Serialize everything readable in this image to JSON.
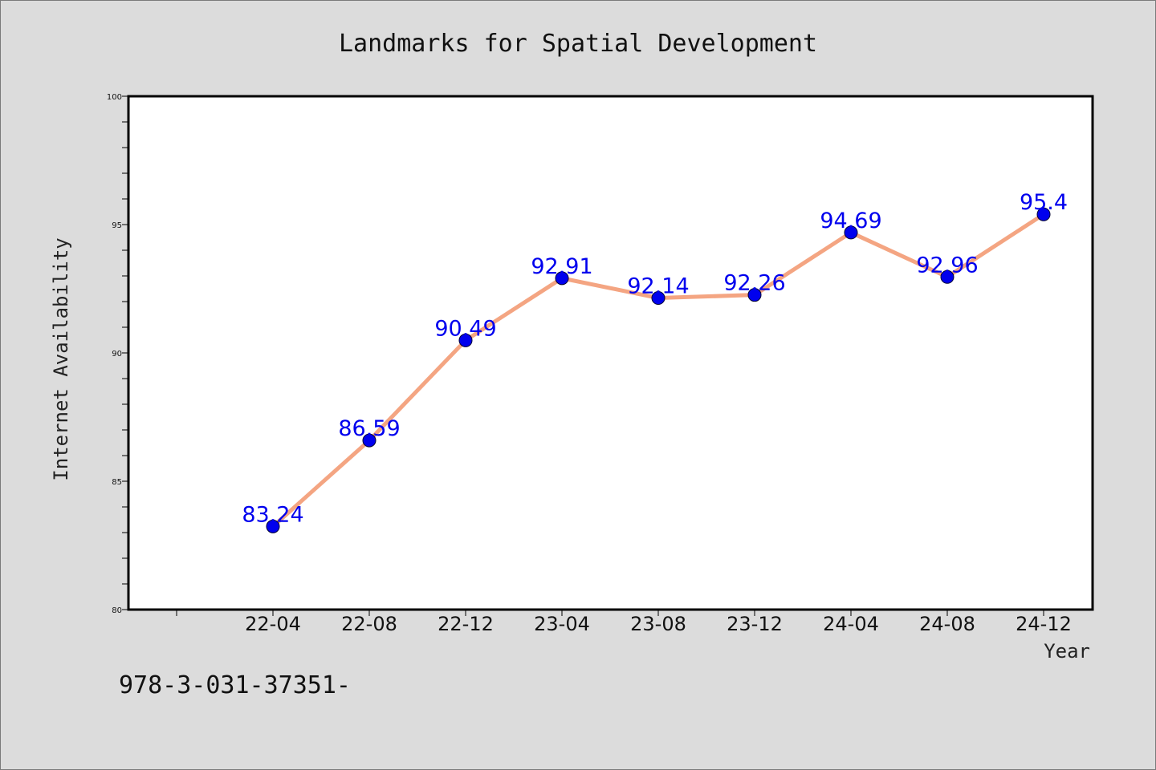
{
  "chart_data": {
    "type": "line",
    "title": "Landmarks for Spatial Development",
    "xlabel": "Year",
    "ylabel": "Internet Availability",
    "categories": [
      "22-04",
      "22-08",
      "22-12",
      "23-04",
      "23-08",
      "23-12",
      "24-04",
      "24-08",
      "24-12"
    ],
    "series": [
      {
        "values": [
          83.24,
          86.59,
          90.49,
          92.91,
          92.14,
          92.26,
          94.69,
          92.96,
          95.4
        ],
        "labels": [
          "83.24",
          "86.59",
          "90.49",
          "92.91",
          "92.14",
          "92.26",
          "94.69",
          "92.96",
          "95.4"
        ]
      }
    ],
    "ylim": [
      80,
      100
    ],
    "yticks": [
      "80",
      "85",
      "90",
      "95",
      "100"
    ],
    "grid": false,
    "legend": "none",
    "colors": {
      "line": "#f4a582",
      "marker": "#0000ee",
      "label": "#0000ee",
      "background": "#dcdcdc",
      "plot": "#ffffff"
    }
  },
  "footer": {
    "isbn_text": "978-3-031-37351-"
  }
}
